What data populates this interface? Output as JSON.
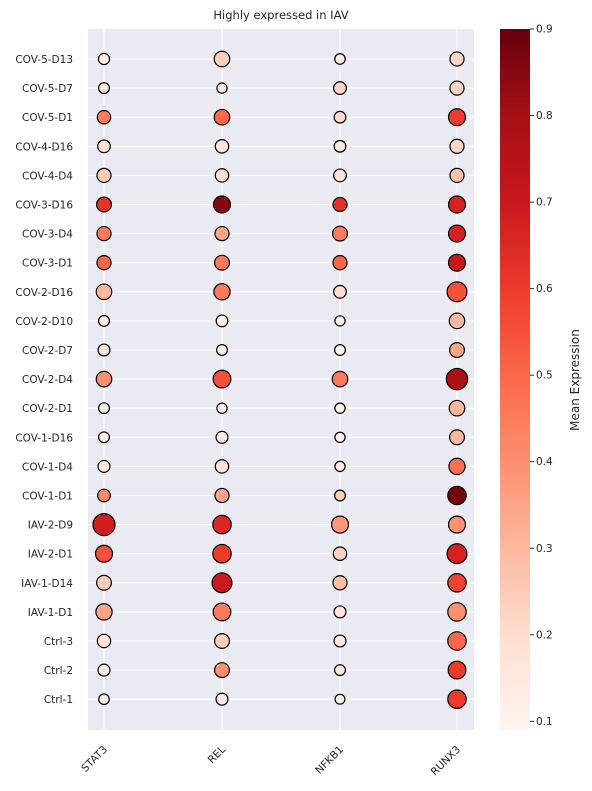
{
  "chart_data": {
    "type": "dotplot",
    "title": "Highly expressed in IAV",
    "genes": [
      "STAT3",
      "REL",
      "NFKB1",
      "RUNX3"
    ],
    "samples": [
      "COV-5-D13",
      "COV-5-D7",
      "COV-5-D1",
      "COV-4-D16",
      "COV-4-D4",
      "COV-3-D16",
      "COV-3-D4",
      "COV-3-D1",
      "COV-2-D16",
      "COV-2-D10",
      "COV-2-D7",
      "COV-2-D4",
      "COV-2-D1",
      "COV-1-D16",
      "COV-1-D4",
      "COV-1-D1",
      "IAV-2-D9",
      "IAV-2-D1",
      "IAV-1-D14",
      "IAV-1-D1",
      "Ctrl-3",
      "Ctrl-2",
      "Ctrl-1"
    ],
    "mean_expression": [
      [
        0.12,
        0.24,
        0.12,
        0.22
      ],
      [
        0.14,
        0.12,
        0.22,
        0.22
      ],
      [
        0.45,
        0.5,
        0.2,
        0.6
      ],
      [
        0.18,
        0.16,
        0.15,
        0.22
      ],
      [
        0.25,
        0.19,
        0.17,
        0.27
      ],
      [
        0.62,
        0.85,
        0.63,
        0.67
      ],
      [
        0.45,
        0.35,
        0.45,
        0.67
      ],
      [
        0.5,
        0.45,
        0.5,
        0.7
      ],
      [
        0.3,
        0.45,
        0.2,
        0.55
      ],
      [
        0.13,
        0.12,
        0.12,
        0.3
      ],
      [
        0.18,
        0.11,
        0.12,
        0.35
      ],
      [
        0.4,
        0.55,
        0.45,
        0.78
      ],
      [
        0.12,
        0.11,
        0.11,
        0.3
      ],
      [
        0.13,
        0.14,
        0.11,
        0.3
      ],
      [
        0.15,
        0.17,
        0.12,
        0.48
      ],
      [
        0.42,
        0.35,
        0.25,
        0.88
      ],
      [
        0.68,
        0.65,
        0.38,
        0.4
      ],
      [
        0.55,
        0.6,
        0.23,
        0.67
      ],
      [
        0.25,
        0.7,
        0.28,
        0.58
      ],
      [
        0.35,
        0.45,
        0.17,
        0.4
      ],
      [
        0.18,
        0.24,
        0.15,
        0.5
      ],
      [
        0.15,
        0.4,
        0.15,
        0.6
      ],
      [
        0.11,
        0.14,
        0.1,
        0.6
      ]
    ],
    "fraction_expressing": [
      [
        0.25,
        0.55,
        0.2,
        0.45
      ],
      [
        0.22,
        0.18,
        0.35,
        0.45
      ],
      [
        0.4,
        0.55,
        0.28,
        0.65
      ],
      [
        0.35,
        0.4,
        0.28,
        0.45
      ],
      [
        0.45,
        0.4,
        0.35,
        0.45
      ],
      [
        0.5,
        0.65,
        0.45,
        0.65
      ],
      [
        0.45,
        0.45,
        0.5,
        0.65
      ],
      [
        0.45,
        0.5,
        0.45,
        0.65
      ],
      [
        0.55,
        0.6,
        0.35,
        0.85
      ],
      [
        0.22,
        0.28,
        0.18,
        0.55
      ],
      [
        0.3,
        0.22,
        0.22,
        0.5
      ],
      [
        0.55,
        0.7,
        0.55,
        0.95
      ],
      [
        0.22,
        0.18,
        0.18,
        0.55
      ],
      [
        0.22,
        0.3,
        0.18,
        0.5
      ],
      [
        0.3,
        0.4,
        0.18,
        0.6
      ],
      [
        0.35,
        0.45,
        0.22,
        0.75
      ],
      [
        1.0,
        0.75,
        0.65,
        0.65
      ],
      [
        0.65,
        0.75,
        0.4,
        0.85
      ],
      [
        0.5,
        0.85,
        0.45,
        0.75
      ],
      [
        0.6,
        0.7,
        0.3,
        0.75
      ],
      [
        0.4,
        0.5,
        0.3,
        0.75
      ],
      [
        0.3,
        0.5,
        0.22,
        0.7
      ],
      [
        0.2,
        0.3,
        0.15,
        0.75
      ]
    ],
    "colorbar": {
      "label": "Mean Expression",
      "range": [
        0.09,
        0.9
      ],
      "ticks": [
        "0.1",
        "0.2",
        "0.3",
        "0.4",
        "0.5",
        "0.6",
        "0.7",
        "0.8",
        "0.9"
      ],
      "colormap": [
        "#fff5f0",
        "#fee0d2",
        "#fcbba1",
        "#fc9272",
        "#fb6a4a",
        "#ef3b2c",
        "#cb181d",
        "#a50f15",
        "#67000d"
      ]
    },
    "background": "#eaeaf2",
    "grid": true
  }
}
